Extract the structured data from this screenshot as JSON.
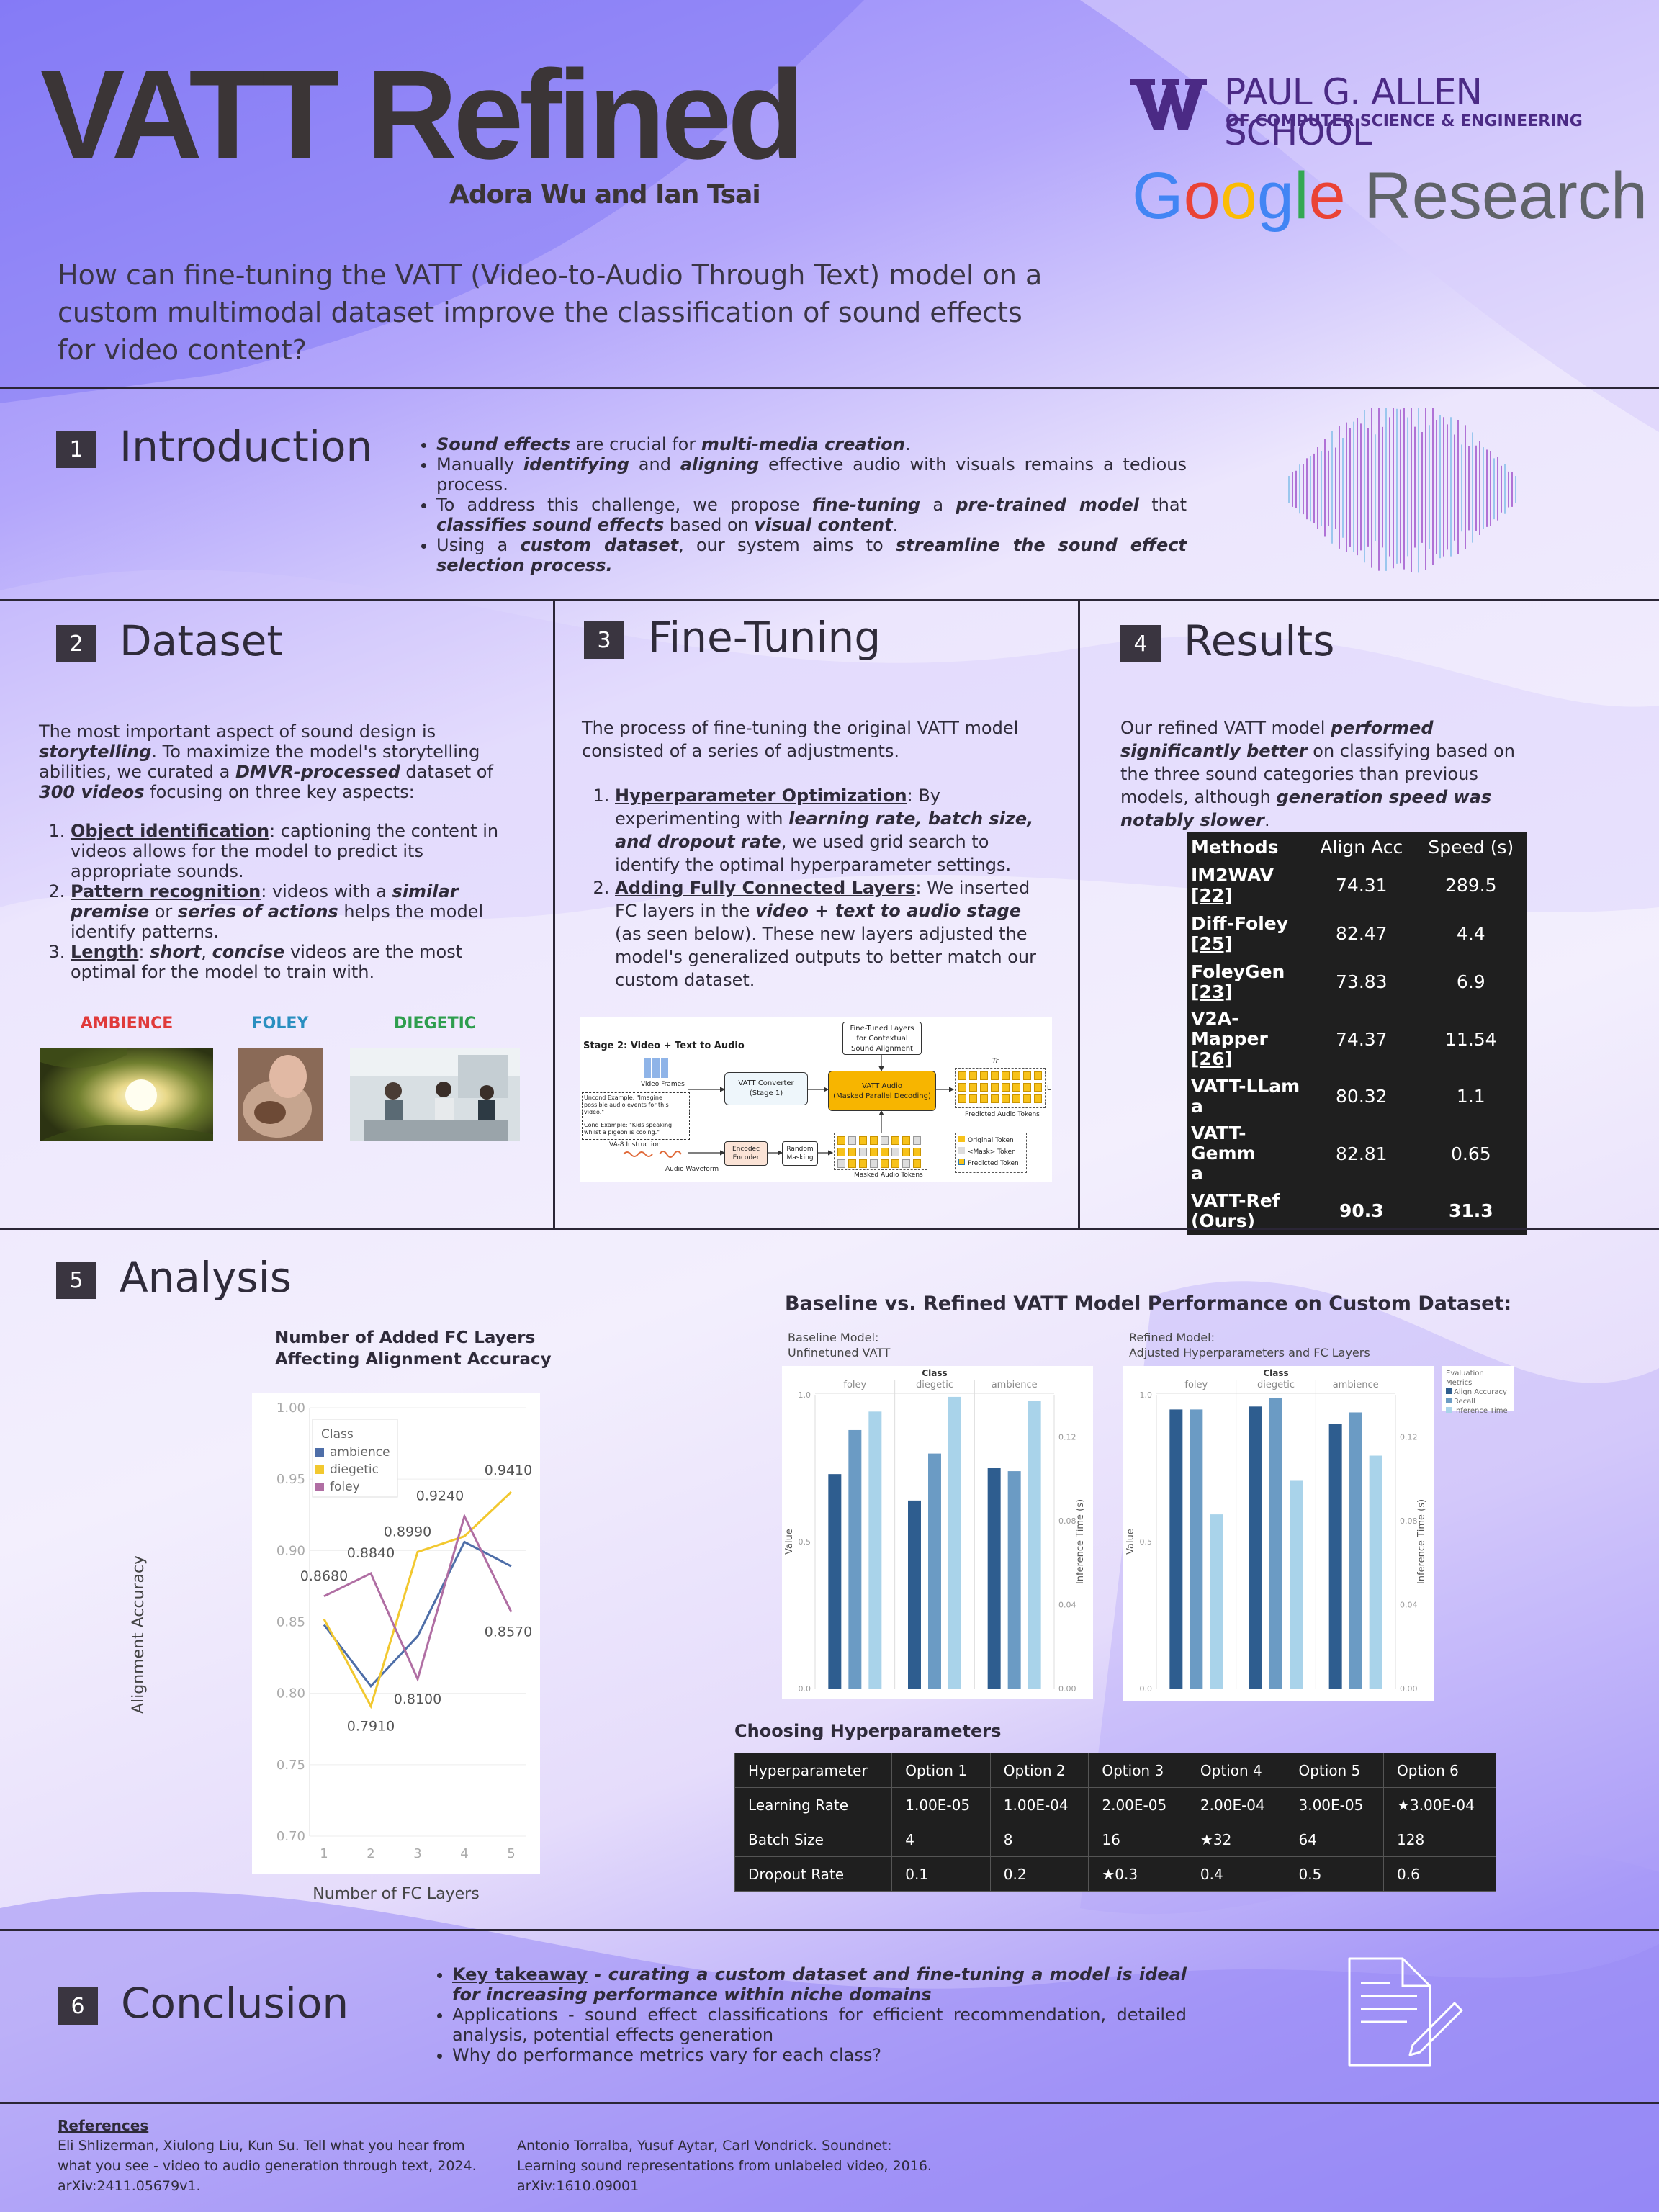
{
  "header": {
    "title": "VATT Refined",
    "authors": "Adora Wu and Ian Tsai",
    "question": "How can fine-tuning the VATT (Video-to-Audio Through Text) model on a custom multimodal dataset improve the classification of sound effects for video content?",
    "uw_line1": "PAUL G. ALLEN SCHOOL",
    "uw_line2": "OF COMPUTER SCIENCE & ENGINEERING",
    "google": "Google",
    "research": "Research"
  },
  "intro": {
    "num": "1",
    "title": "Introduction",
    "b1": [
      {
        "t": "Sound effects",
        "s": "bi"
      },
      {
        "t": " are crucial for "
      },
      {
        "t": "multi-media creation",
        "s": "bi"
      },
      {
        "t": "."
      }
    ],
    "b2": [
      {
        "t": "Manually "
      },
      {
        "t": "identifying",
        "s": "bi"
      },
      {
        "t": " and "
      },
      {
        "t": "aligning",
        "s": "bi"
      },
      {
        "t": " effective audio with visuals remains a tedious process."
      }
    ],
    "b3": [
      {
        "t": "To address this challenge, we propose "
      },
      {
        "t": "fine-tuning",
        "s": "bi"
      },
      {
        "t": " a "
      },
      {
        "t": "pre-trained model",
        "s": "bi"
      },
      {
        "t": " that "
      },
      {
        "t": "classifies sound effects",
        "s": "bi"
      },
      {
        "t": " based on "
      },
      {
        "t": "visual content",
        "s": "bi"
      },
      {
        "t": "."
      }
    ],
    "b4": [
      {
        "t": "Using a "
      },
      {
        "t": "custom dataset",
        "s": "bi"
      },
      {
        "t": ", our system aims to "
      },
      {
        "t": "streamline the sound effect selection process.",
        "s": "bi"
      }
    ]
  },
  "dataset": {
    "num": "2",
    "title": "Dataset",
    "para": [
      {
        "t": "The most important aspect of sound design is "
      },
      {
        "t": "storytelling",
        "s": "bi"
      },
      {
        "t": ". To maximize the model's storytelling abilities, we curated a "
      },
      {
        "t": "DMVR-processed",
        "s": "bi"
      },
      {
        "t": " dataset of "
      },
      {
        "t": "300 videos",
        "s": "bi"
      },
      {
        "t": " focusing on three key aspects:"
      }
    ],
    "i1": [
      {
        "t": "Object identification",
        "s": "u"
      },
      {
        "t": ": captioning the content in videos allows for the model to predict its appropriate sounds."
      }
    ],
    "i2": [
      {
        "t": "Pattern recognition",
        "s": "u"
      },
      {
        "t": ": videos with a "
      },
      {
        "t": "similar premise",
        "s": "bi"
      },
      {
        "t": " or "
      },
      {
        "t": "series of actions",
        "s": "bi"
      },
      {
        "t": " helps the model identify patterns."
      }
    ],
    "i3": [
      {
        "t": "Length",
        "s": "u"
      },
      {
        "t": ": "
      },
      {
        "t": "short",
        "s": "bi"
      },
      {
        "t": ", "
      },
      {
        "t": "concise",
        "s": "bi"
      },
      {
        "t": " videos are the most optimal for the model to train with."
      }
    ],
    "cat1": "AMBIENCE",
    "cat2": "FOLEY",
    "cat3": "DIEGETIC",
    "c1": "#e03a3a",
    "c2": "#2a8fc0",
    "c3": "#2e9e4e"
  },
  "finetune": {
    "num": "3",
    "title": "Fine-Tuning",
    "para": "The process of fine-tuning the original VATT model consisted of a series of adjustments.",
    "i1": [
      {
        "t": "Hyperparameter Optimization",
        "s": "u"
      },
      {
        "t": ": By experimenting with "
      },
      {
        "t": "learning rate, batch size, and dropout rate",
        "s": "bi"
      },
      {
        "t": ", we used grid search to identify the optimal hyperparameter settings."
      }
    ],
    "i2": [
      {
        "t": "Adding Fully Connected Layers",
        "s": "u"
      },
      {
        "t": ": We inserted FC layers in the "
      },
      {
        "t": "video + text to audio stage",
        "s": "bi"
      },
      {
        "t": " (as seen below). These new layers adjusted the model's generalized outputs to better match our custom dataset."
      }
    ],
    "diag": {
      "stage": "Stage 2: Video + Text to Audio",
      "ft1": "Fine-Tuned Layers",
      "ft2": "for Contextual",
      "ft3": "Sound Alignment",
      "vframes": "Video Frames",
      "conv1": "VATT Converter",
      "conv2": "(Stage 1)",
      "audio1": "VATT Audio",
      "audio2": "(Masked Parallel Decoding)",
      "pred": "Predicted Audio Tokens",
      "uncond": "Uncond Example: \"Imagine possible audio events for this video.\"",
      "cond": "Cond Example: \"Kids speaking whilst a pigeon is cooing.\"",
      "instr": "VA-8 Instruction",
      "waveform": "Audio Waveform",
      "enc1": "Encodec",
      "enc2": "Encoder",
      "rm1": "Random",
      "rm2": "Masking",
      "masked": "Masked Audio Tokens",
      "leg1": "Original Token",
      "leg2": "<Mask> Token",
      "leg3": "Predicted Token",
      "tr": "Tr",
      "l": "L"
    }
  },
  "results": {
    "num": "4",
    "title": "Results",
    "para": [
      {
        "t": "Our refined VATT model "
      },
      {
        "t": "performed significantly better",
        "s": "bi"
      },
      {
        "t": " on classifying based on the three sound categories than previous models, although "
      },
      {
        "t": "generation speed was notably slower",
        "s": "bi"
      },
      {
        "t": "."
      }
    ],
    "cols": [
      "Methods",
      "Align Acc",
      "Speed (s)"
    ],
    "rows": [
      {
        "m1": "IM2WAV",
        "m2": "[22]",
        "a": "74.31",
        "s": "289.5"
      },
      {
        "m1": "Diff-Foley",
        "m2": "[25]",
        "a": "82.47",
        "s": "4.4"
      },
      {
        "m1": "FoleyGen",
        "m2": "[23]",
        "a": "73.83",
        "s": "6.9"
      },
      {
        "m1": "V2A-Mapper",
        "m2": "[26]",
        "a": "74.37",
        "s": "11.54"
      },
      {
        "m1": "VATT-LLam",
        "m2": "a",
        "a": "80.32",
        "s": "1.1"
      },
      {
        "m1": "VATT-Gemm",
        "m2": "a",
        "a": "82.81",
        "s": "0.65"
      },
      {
        "m1": "VATT-Ref",
        "m2": "(Ours)",
        "a": "90.3",
        "s": "31.3"
      }
    ]
  },
  "analysis": {
    "num": "5",
    "title": "Analysis",
    "baseline_title": "Baseline vs. Refined VATT Model Performance on Custom Dataset:",
    "hp_title": "Choosing Hyperparameters",
    "hp_cols": [
      "Hyperparameter",
      "Option 1",
      "Option 2",
      "Option 3",
      "Option 4",
      "Option 5",
      "Option 6"
    ],
    "hp_rows": [
      [
        "Learning Rate",
        "1.00E-05",
        "1.00E-04",
        "2.00E-05",
        "2.00E-04",
        "3.00E-05",
        "★3.00E-04"
      ],
      [
        "Batch Size",
        "4",
        "8",
        "16",
        "★32",
        "64",
        "128"
      ],
      [
        "Dropout Rate",
        "0.1",
        "0.2",
        "★0.3",
        "0.4",
        "0.5",
        "0.6"
      ]
    ]
  },
  "chart_data": [
    {
      "type": "line",
      "title": "Number of Added FC Layers Affecting Alignment Accuracy",
      "xlabel": "Number of FC Layers",
      "ylabel": "Alignment Accuracy",
      "x": [
        1,
        2,
        3,
        4,
        5
      ],
      "ylim": [
        0.7,
        1.0
      ],
      "yticks": [
        "0.70",
        "0.75",
        "0.80",
        "0.85",
        "0.90",
        "0.95",
        "1.00"
      ],
      "legend_title": "Class",
      "legend_position": "top-left",
      "series": [
        {
          "name": "ambience",
          "color": "#4e6ea8",
          "values": [
            0.848,
            0.805,
            0.84,
            0.906,
            0.889
          ]
        },
        {
          "name": "diegetic",
          "color": "#f2c82f",
          "values": [
            0.852,
            0.791,
            0.899,
            0.91,
            0.941
          ]
        },
        {
          "name": "foley",
          "color": "#b06ea3",
          "values": [
            0.868,
            0.884,
            0.81,
            0.924,
            0.857
          ]
        }
      ],
      "labels": [
        {
          "x": 1,
          "y": 0.868,
          "t": "0.8680",
          "dx": 0,
          "dy": -22
        },
        {
          "x": 2,
          "y": 0.884,
          "t": "0.8840",
          "dx": 0,
          "dy": -22
        },
        {
          "x": 2,
          "y": 0.791,
          "t": "0.7910",
          "dx": 0,
          "dy": 34
        },
        {
          "x": 3,
          "y": 0.899,
          "t": "0.8990",
          "dx": -14,
          "dy": -22
        },
        {
          "x": 3,
          "y": 0.81,
          "t": "0.8100",
          "dx": 0,
          "dy": 34
        },
        {
          "x": 4,
          "y": 0.924,
          "t": "0.9240",
          "dx": -34,
          "dy": -22
        },
        {
          "x": 5,
          "y": 0.941,
          "t": "0.9410",
          "dx": -4,
          "dy": -24
        },
        {
          "x": 5,
          "y": 0.857,
          "t": "0.8570",
          "dx": -4,
          "dy": 34
        }
      ]
    },
    {
      "type": "bar",
      "title": "Baseline Model: Unfinetuned VATT",
      "categories": [
        "foley",
        "diegetic",
        "ambience"
      ],
      "group_label": "Class",
      "ylabel": "Value",
      "y2label": "Inference Time (s)",
      "ylim": [
        0,
        1.0
      ],
      "y2lim": [
        0,
        0.14
      ],
      "yticks": [
        "0.0",
        "0.5",
        "1.0"
      ],
      "y2ticks": [
        "0.00",
        "0.04",
        "0.08",
        "0.12"
      ],
      "series": [
        {
          "name": "Align Accuracy",
          "color": "#2e5d8f",
          "values": [
            0.73,
            0.64,
            0.75
          ]
        },
        {
          "name": "Recall",
          "color": "#6b9bc4",
          "values": [
            0.88,
            0.8,
            0.74
          ]
        },
        {
          "name": "Inference Time",
          "color": "#a9d3ea",
          "axis": "right",
          "values": [
            0.132,
            0.139,
            0.137
          ]
        }
      ]
    },
    {
      "type": "bar",
      "title": "Refined Model: Adjusted Hyperparameters and FC Layers",
      "categories": [
        "foley",
        "diegetic",
        "ambience"
      ],
      "group_label": "Class",
      "legend_title": "Evaluation Metrics",
      "legend_position": "right",
      "ylabel": "Value",
      "y2label": "Inference Time (s)",
      "ylim": [
        0,
        1.0
      ],
      "y2lim": [
        0,
        0.14
      ],
      "yticks": [
        "0.0",
        "0.5",
        "1.0"
      ],
      "y2ticks": [
        "0.00",
        "0.04",
        "0.08",
        "0.12"
      ],
      "series": [
        {
          "name": "Align Accuracy",
          "color": "#2e5d8f",
          "values": [
            0.95,
            0.96,
            0.9
          ]
        },
        {
          "name": "Recall",
          "color": "#6b9bc4",
          "values": [
            0.95,
            0.99,
            0.94
          ]
        },
        {
          "name": "Inference Time",
          "color": "#a9d3ea",
          "axis": "right",
          "values": [
            0.083,
            0.099,
            0.111
          ]
        }
      ]
    }
  ],
  "conclusion": {
    "num": "6",
    "title": "Conclusion",
    "b1": [
      {
        "t": "Key takeaway",
        "s": "u"
      },
      {
        "t": " - curating a custom dataset and fine-tuning a model is ideal for increasing performance within niche domains",
        "s": "bi"
      }
    ],
    "b2": "Applications - sound effect classifications for efficient recommendation, detailed analysis, potential effects generation",
    "b3": "Why do performance metrics vary for each class?"
  },
  "references": {
    "title": "References",
    "r1": "Eli Shlizerman, Xiulong Liu, Kun Su. Tell what you hear from what you see - video to audio generation through text, 2024. arXiv:2411.05679v1.",
    "r2": "Antonio Torralba, Yusuf Aytar, Carl Vondrick. Soundnet: Learning sound representations from unlabeled video, 2016. arXiv:1610.09001"
  }
}
